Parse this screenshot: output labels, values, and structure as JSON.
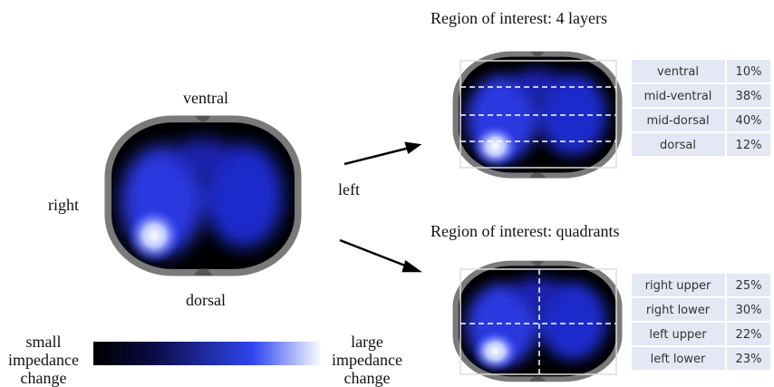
{
  "main": {
    "top": "ventral",
    "bottom": "dorsal",
    "left_side": "right",
    "right_side": "left"
  },
  "colorbar": {
    "low": [
      "small",
      "impedance",
      "change"
    ],
    "high": [
      "large",
      "impedance",
      "change"
    ]
  },
  "layers": {
    "title": "Region of interest: 4 layers",
    "rows": [
      [
        "ventral",
        "10%"
      ],
      [
        "mid-ventral",
        "38%"
      ],
      [
        "mid-dorsal",
        "40%"
      ],
      [
        "dorsal",
        "12%"
      ]
    ]
  },
  "quadrants": {
    "title": "Region of interest: quadrants",
    "rows": [
      [
        "right upper",
        "25%"
      ],
      [
        "right lower",
        "30%"
      ],
      [
        "left upper",
        "22%"
      ],
      [
        "left lower",
        "23%"
      ]
    ]
  }
}
